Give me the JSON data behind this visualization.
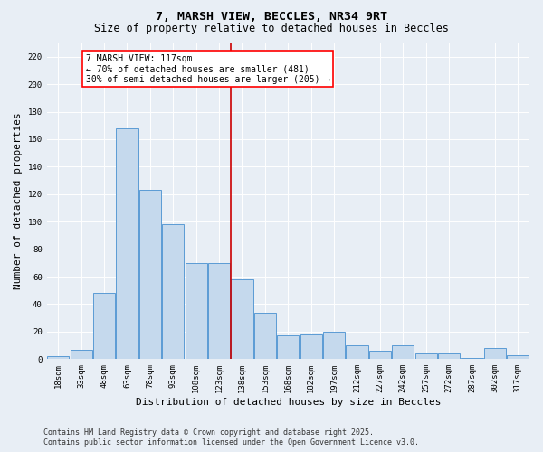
{
  "title1": "7, MARSH VIEW, BECCLES, NR34 9RT",
  "title2": "Size of property relative to detached houses in Beccles",
  "xlabel": "Distribution of detached houses by size in Beccles",
  "ylabel": "Number of detached properties",
  "bins": [
    "18sqm",
    "33sqm",
    "48sqm",
    "63sqm",
    "78sqm",
    "93sqm",
    "108sqm",
    "123sqm",
    "138sqm",
    "153sqm",
    "168sqm",
    "182sqm",
    "197sqm",
    "212sqm",
    "227sqm",
    "242sqm",
    "257sqm",
    "272sqm",
    "287sqm",
    "302sqm",
    "317sqm"
  ],
  "values": [
    2,
    7,
    48,
    168,
    123,
    98,
    70,
    70,
    58,
    34,
    17,
    18,
    20,
    10,
    6,
    10,
    4,
    4,
    1,
    8,
    3
  ],
  "bar_color": "#c5d9ed",
  "bar_edge_color": "#5b9bd5",
  "vline_pos": 7.5,
  "vline_color": "#cc0000",
  "annotation_line1": "7 MARSH VIEW: 117sqm",
  "annotation_line2": "← 70% of detached houses are smaller (481)",
  "annotation_line3": "30% of semi-detached houses are larger (205) →",
  "annotation_box_color": "white",
  "annotation_box_edge": "red",
  "ylim": [
    0,
    230
  ],
  "yticks": [
    0,
    20,
    40,
    60,
    80,
    100,
    120,
    140,
    160,
    180,
    200,
    220
  ],
  "background_color": "#e8eef5",
  "grid_color": "#ffffff",
  "footer1": "Contains HM Land Registry data © Crown copyright and database right 2025.",
  "footer2": "Contains public sector information licensed under the Open Government Licence v3.0.",
  "title_fontsize": 9.5,
  "subtitle_fontsize": 8.5,
  "axis_label_fontsize": 8,
  "tick_fontsize": 6.5,
  "footer_fontsize": 6,
  "annot_fontsize": 7
}
